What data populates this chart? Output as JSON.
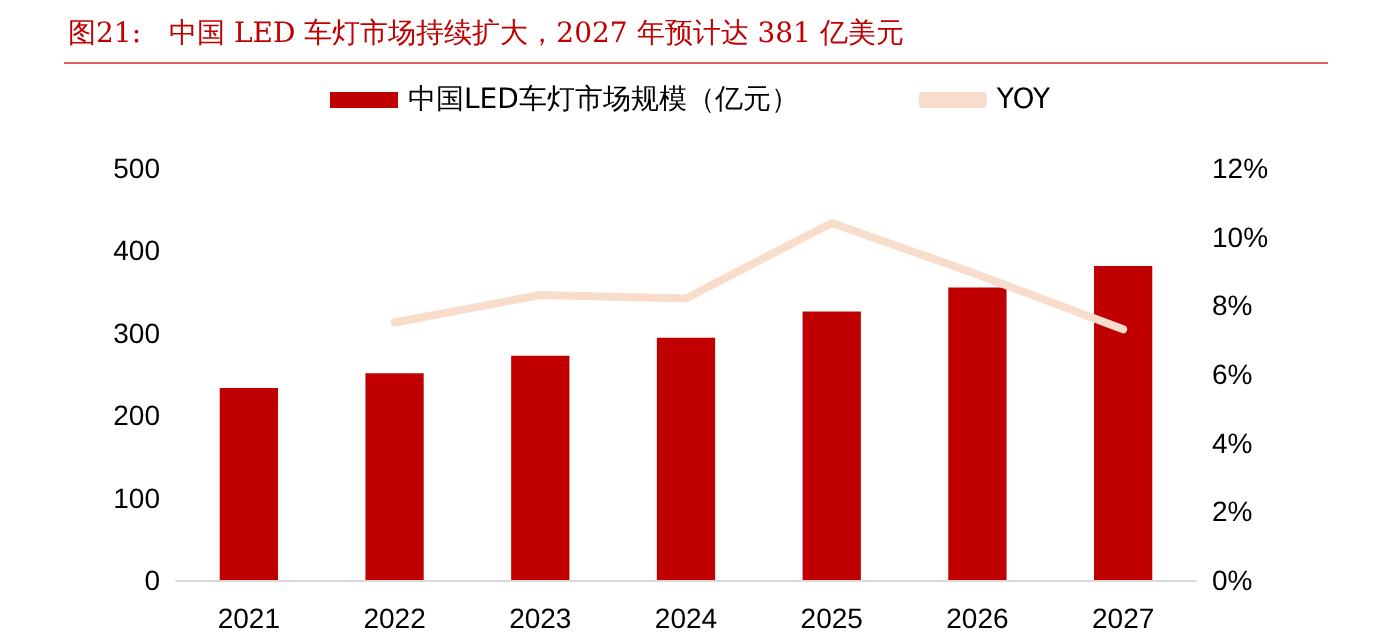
{
  "chart_data": {
    "type": "bar",
    "title": "图21:　中国 LED 车灯市场持续扩大，2027 年预计达 381 亿美元",
    "categories": [
      "2021",
      "2022",
      "2023",
      "2024",
      "2025",
      "2026",
      "2027"
    ],
    "series": [
      {
        "name": "中国LED车灯市场规模（亿元）",
        "color": "#c00000",
        "values": [
          233,
          251,
          272,
          294,
          326,
          355,
          381
        ]
      },
      {
        "name": "YOY",
        "type": "line",
        "axis": "y2",
        "color": "#f8ddcc",
        "values": [
          null,
          7.5,
          8.3,
          8.2,
          10.4,
          8.9,
          7.3
        ]
      }
    ],
    "ylim": [
      0,
      500
    ],
    "yticks": [
      0,
      100,
      200,
      300,
      400,
      500
    ],
    "y2lim": [
      0,
      12
    ],
    "y2ticks": [
      {
        "value": 0,
        "label": "0%"
      },
      {
        "value": 2,
        "label": "2%"
      },
      {
        "value": 4,
        "label": "4%"
      },
      {
        "value": 6,
        "label": "6%"
      },
      {
        "value": 8,
        "label": "8%"
      },
      {
        "value": 10,
        "label": "10%"
      },
      {
        "value": 12,
        "label": "12%"
      }
    ],
    "grid": false,
    "legend": "top",
    "marker": "none"
  }
}
